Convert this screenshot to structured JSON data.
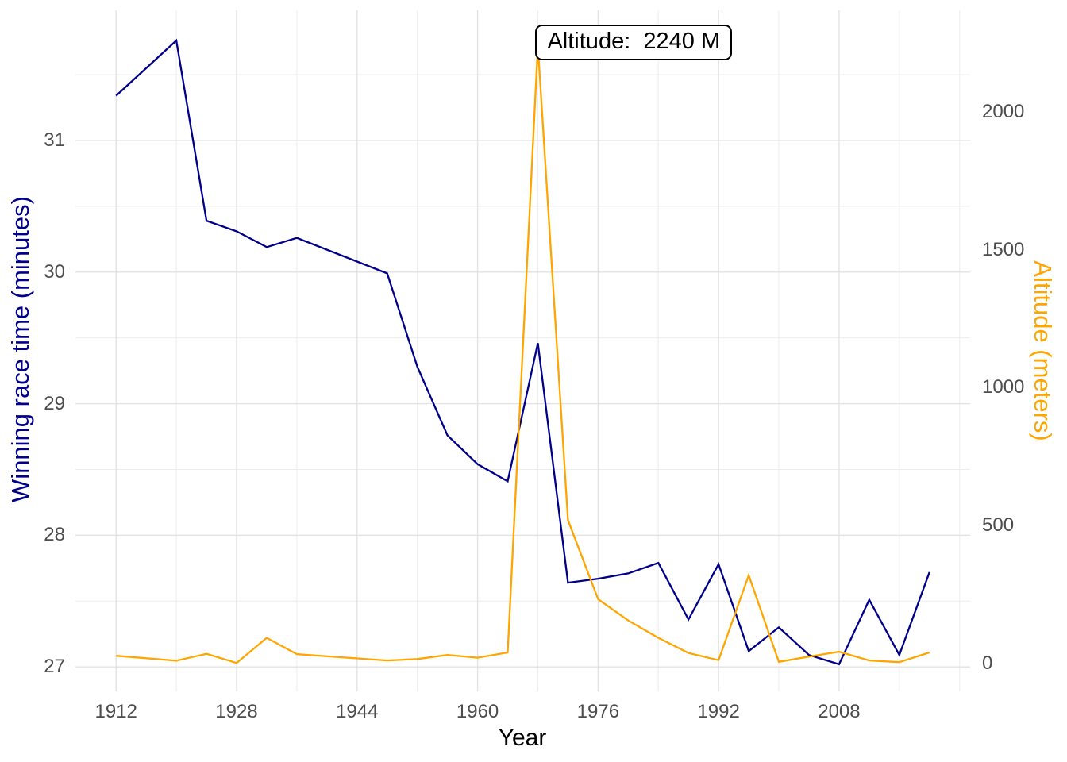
{
  "chart_data": {
    "type": "line",
    "title": "",
    "xlabel": "Year",
    "ylabel_left": "Winning race time (minutes)",
    "ylabel_right": "Altitude (meters)",
    "grid": true,
    "legend_position": "none",
    "x": [
      1912,
      1920,
      1924,
      1928,
      1932,
      1936,
      1948,
      1952,
      1956,
      1960,
      1964,
      1968,
      1972,
      1976,
      1980,
      1984,
      1988,
      1992,
      1996,
      2000,
      2004,
      2008,
      2012,
      2016,
      2020
    ],
    "series": [
      {
        "name": "Winning race time (minutes)",
        "axis": "left",
        "color": "#00008B",
        "values": [
          31.34,
          31.76,
          30.39,
          30.31,
          30.19,
          30.26,
          29.99,
          29.28,
          28.76,
          28.54,
          28.41,
          29.46,
          27.64,
          27.67,
          27.71,
          27.79,
          27.36,
          27.78,
          27.12,
          27.3,
          27.09,
          27.02,
          27.51,
          27.09,
          27.72
        ]
      },
      {
        "name": "Altitude (meters)",
        "axis": "right",
        "color": "#FFA500",
        "values": [
          28,
          10,
          35,
          2,
          93,
          34,
          11,
          16,
          31,
          21,
          40,
          2240,
          520,
          233,
          156,
          93,
          38,
          12,
          320,
          6,
          25,
          43,
          11,
          5,
          40
        ]
      }
    ],
    "annotation": {
      "text": "Altitude:  2240 M",
      "at_year": 1968
    },
    "axes": {
      "x": {
        "range": [
          1906.6,
          2025.4
        ],
        "major_ticks": [
          1912,
          1928,
          1944,
          1960,
          1976,
          1992,
          2008
        ],
        "minor_ticks": [
          1920,
          1936,
          1952,
          1968,
          1984,
          2000,
          2016,
          2024
        ]
      },
      "left": {
        "range": [
          26.814,
          31.989
        ],
        "major_ticks": [
          27,
          28,
          29,
          30,
          31
        ],
        "minor_ticks": [
          27.5,
          28.5,
          29.5,
          30.5,
          31.5
        ]
      },
      "right": {
        "range": [
          -101,
          2368
        ],
        "major_ticks": [
          0,
          500,
          1000,
          1500,
          2000
        ]
      }
    },
    "colors": {
      "race_time_line": "#00008B",
      "altitude_line": "#FFA500",
      "grid_major": "#E3E3E3",
      "grid_minor": "#EDEDED",
      "tick_text": "#4d4d4d",
      "x_title_text": "#000000",
      "annotation_border": "#000000",
      "background": "#ffffff"
    }
  }
}
